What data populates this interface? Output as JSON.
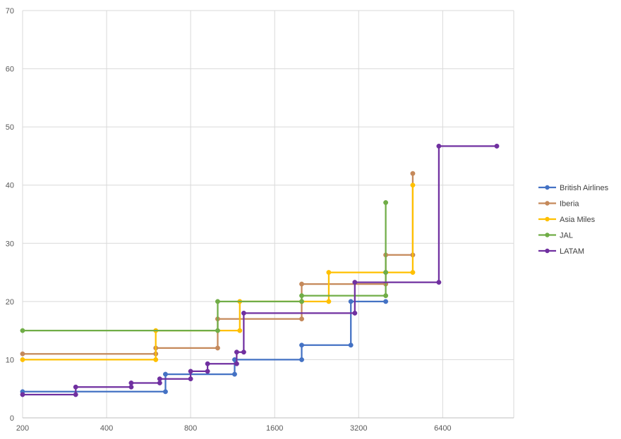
{
  "chart_data": {
    "type": "line",
    "title": "",
    "xlabel": "",
    "ylabel": "",
    "x_scale": "log2",
    "x_ticks": [
      "200",
      "400",
      "800",
      "1600",
      "3200",
      "6400"
    ],
    "x_range": [
      200,
      11500
    ],
    "y_ticks": [
      "0",
      "10",
      "20",
      "30",
      "40",
      "50",
      "60",
      "70"
    ],
    "ylim": [
      0,
      70
    ],
    "grid": true,
    "legend_position": "right",
    "series": [
      {
        "name": "British Airlines",
        "color": "#4472C4",
        "points": [
          [
            200,
            4.5
          ],
          [
            650,
            4.5
          ],
          [
            650,
            7.5
          ],
          [
            1150,
            7.5
          ],
          [
            1150,
            10
          ],
          [
            2000,
            10
          ],
          [
            2000,
            12.5
          ],
          [
            3000,
            12.5
          ],
          [
            3000,
            20
          ],
          [
            4000,
            20
          ]
        ]
      },
      {
        "name": "Iberia",
        "color": "#C5895A",
        "points": [
          [
            200,
            11
          ],
          [
            600,
            11
          ],
          [
            600,
            12
          ],
          [
            1000,
            12
          ],
          [
            1000,
            17
          ],
          [
            2000,
            17
          ],
          [
            2000,
            23
          ],
          [
            4000,
            23
          ],
          [
            4000,
            28
          ],
          [
            5000,
            28
          ],
          [
            5000,
            42
          ]
        ]
      },
      {
        "name": "Asia Miles",
        "color": "#FFC000",
        "points": [
          [
            200,
            10
          ],
          [
            600,
            10
          ],
          [
            600,
            15
          ],
          [
            1200,
            15
          ],
          [
            1200,
            20
          ],
          [
            2000,
            20
          ],
          [
            2000,
            20
          ],
          [
            2500,
            20
          ],
          [
            2500,
            25
          ],
          [
            5000,
            25
          ],
          [
            5000,
            40
          ]
        ]
      },
      {
        "name": "JAL",
        "color": "#70AD47",
        "points": [
          [
            200,
            15
          ],
          [
            1000,
            15
          ],
          [
            1000,
            20
          ],
          [
            2000,
            20
          ],
          [
            2000,
            21
          ],
          [
            4000,
            21
          ],
          [
            4000,
            25
          ],
          [
            4000,
            25
          ],
          [
            4000,
            37
          ]
        ]
      },
      {
        "name": "LATAM",
        "color": "#7030A0",
        "points": [
          [
            200,
            4
          ],
          [
            310,
            4
          ],
          [
            310,
            5.3
          ],
          [
            490,
            5.3
          ],
          [
            490,
            6
          ],
          [
            620,
            6
          ],
          [
            620,
            6.7
          ],
          [
            800,
            6.7
          ],
          [
            800,
            8
          ],
          [
            920,
            8
          ],
          [
            920,
            9.3
          ],
          [
            1170,
            9.3
          ],
          [
            1170,
            11.3
          ],
          [
            1240,
            11.3
          ],
          [
            1240,
            18
          ],
          [
            3100,
            18
          ],
          [
            3100,
            23.3
          ],
          [
            6200,
            23.3
          ],
          [
            6200,
            46.7
          ],
          [
            10000,
            46.7
          ]
        ]
      }
    ]
  }
}
